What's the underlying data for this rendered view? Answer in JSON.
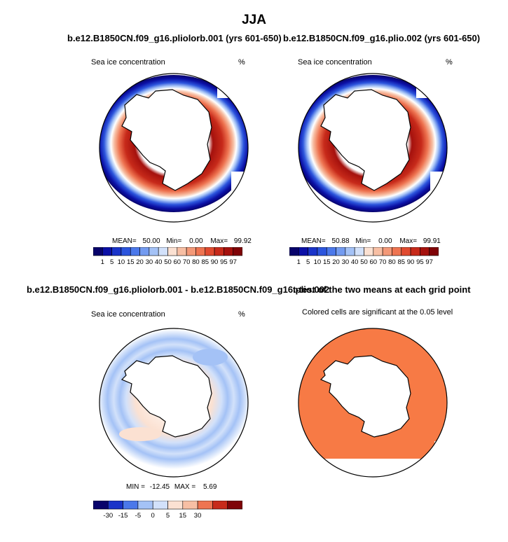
{
  "season_title": "JJA",
  "panels": [
    {
      "case_title": "b.e12.B1850CN.f09_g16.pliolorb.001 (yrs 601-650)",
      "field_label": "Sea ice concentration",
      "units": "%",
      "stats": {
        "mean_label": "MEAN=",
        "mean": "50.00",
        "min_label": "Min=",
        "min": "0.00",
        "max_label": "Max=",
        "max": "99.92"
      }
    },
    {
      "case_title": "b.e12.B1850CN.f09_g16.plio.002 (yrs 601-650)",
      "field_label": "Sea ice concentration",
      "units": "%",
      "stats": {
        "mean_label": "MEAN=",
        "mean": "50.88",
        "min_label": "Min=",
        "min": "0.00",
        "max_label": "Max=",
        "max": "99.91"
      }
    },
    {
      "case_title": "b.e12.B1850CN.f09_g16.pliolorb.001 - b.e12.B1850CN.f09_g16.plio.002",
      "field_label": "Sea ice concentration",
      "units": "%",
      "stats": {
        "min_label": "MIN =",
        "min": "-12.45",
        "max_label": "MAX =",
        "max": "5.69"
      }
    },
    {
      "case_title": "t-test of the two means at each grid point",
      "subtitle": "Colored cells are significant at the 0.05 level",
      "fill_color": "#F77A45"
    }
  ],
  "colorbar_abs": {
    "labels": [
      "1",
      "5",
      "10",
      "15",
      "20",
      "30",
      "40",
      "50",
      "60",
      "70",
      "80",
      "85",
      "90",
      "95",
      "97"
    ],
    "colors": [
      "#08036B",
      "#0B10A6",
      "#1A34C9",
      "#2C55DD",
      "#4B78EA",
      "#739BF0",
      "#A4C2F6",
      "#D2E1FA",
      "#FBE1D2",
      "#F7BFA4",
      "#F39978",
      "#EE7451",
      "#E04A2F",
      "#C72A1A",
      "#A5110D",
      "#7F0307"
    ]
  },
  "colorbar_diff": {
    "labels": [
      "-30",
      "-15",
      "-5",
      "0",
      "5",
      "15",
      "30"
    ],
    "colors": [
      "#08036B",
      "#1A34C9",
      "#4B78EA",
      "#A4C2F6",
      "#D2E1FA",
      "#FBE1D2",
      "#F7BFA4",
      "#EE7451",
      "#C72A1A",
      "#7F0307"
    ]
  }
}
